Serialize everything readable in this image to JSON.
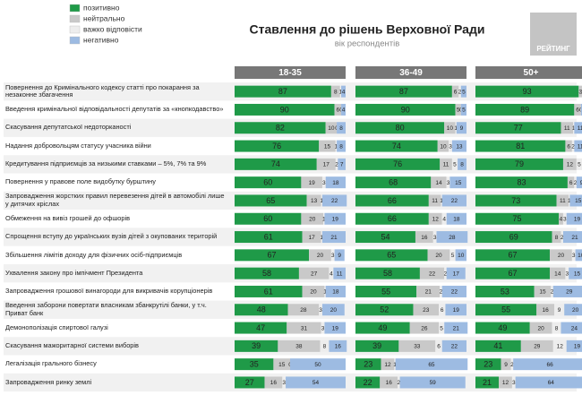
{
  "chart_data": {
    "type": "bar",
    "stacked": true,
    "horizontal": true,
    "title": "Ставлення до рішень Верховної Ради",
    "subtitle": "вік респондентів",
    "logo": "РЕЙТИНГ",
    "xlim": [
      0,
      100
    ],
    "series": [
      {
        "name": "позитивно",
        "color": "#1f9a48"
      },
      {
        "name": "нейтрально",
        "color": "#c9c9c9"
      },
      {
        "name": "важко відповісти",
        "color": "#ededed"
      },
      {
        "name": "негативно",
        "color": "#9dbbe2"
      }
    ],
    "categories": [
      "Повернення до Кримінального кодексу статті про покарання за незаконне збагачення",
      "Введення кримінальної відповідальності депутатів за «кнопкодавство»",
      "Скасування депутатської недоторканості",
      "Надання добровольцям статусу учасника війни",
      "Кредитування підприємців за низькими ставками – 5%, 7% та 9%",
      "Повернення у правове поле видобутку бурштину",
      "Запровадження жорстких правил перевезення дітей в автомобілі лише у дитячих кріслах",
      "Обмеження на вивіз грошей до офшорів",
      "Спрощення вступу до українських вузів дітей з окупованих територій",
      "Збільшення лімітів доходу для фізичних осіб-підприємців",
      "Ухвалення закону про імпічмент Президента",
      "Запровадження грошової винагороди для викривачів корупціонерів",
      "Введення заборони повертати власникам збанкрутілі банки, у т.ч. Приват банк",
      "Демонополізація спиртової галузі",
      "Скасування мажоритарної системи виборів",
      "Легалізація грального бізнесу",
      "Запровадження ринку землі"
    ],
    "panels": [
      {
        "title": "18-35",
        "values": [
          [
            87,
            90,
            82,
            76,
            74,
            60,
            65,
            60,
            61,
            67,
            58,
            61,
            48,
            47,
            39,
            35,
            27
          ],
          [
            8,
            6,
            10,
            15,
            17,
            19,
            13,
            20,
            17,
            20,
            27,
            20,
            28,
            31,
            38,
            15,
            16
          ],
          [
            1,
            0,
            0,
            1,
            2,
            3,
            1,
            1,
            1,
            3,
            4,
            1,
            3,
            3,
            8,
            0,
            3
          ],
          [
            4,
            4,
            8,
            8,
            7,
            18,
            22,
            19,
            21,
            9,
            11,
            18,
            20,
            19,
            16,
            50,
            54
          ]
        ]
      },
      {
        "title": "36-49",
        "values": [
          [
            87,
            90,
            80,
            74,
            76,
            68,
            66,
            66,
            54,
            65,
            58,
            55,
            52,
            49,
            39,
            23,
            22
          ],
          [
            6,
            5,
            10,
            10,
            11,
            14,
            11,
            12,
            16,
            20,
            22,
            21,
            23,
            26,
            33,
            12,
            16
          ],
          [
            2,
            0,
            1,
            3,
            5,
            3,
            1,
            4,
            3,
            5,
            2,
            2,
            6,
            5,
            6,
            1,
            2
          ],
          [
            5,
            5,
            9,
            13,
            8,
            15,
            22,
            18,
            28,
            10,
            17,
            22,
            19,
            21,
            22,
            65,
            59
          ]
        ]
      },
      {
        "title": "50+",
        "values": [
          [
            93,
            89,
            77,
            81,
            79,
            83,
            73,
            75,
            69,
            67,
            67,
            53,
            55,
            49,
            41,
            23,
            21
          ],
          [
            3,
            6,
            11,
            6,
            12,
            6,
            11,
            4,
            8,
            20,
            14,
            15,
            16,
            20,
            29,
            9,
            12
          ],
          [
            1,
            0,
            1,
            2,
            5,
            2,
            1,
            3,
            2,
            3,
            3,
            2,
            9,
            8,
            12,
            2,
            3
          ],
          [
            3,
            5,
            11,
            11,
            4,
            9,
            15,
            19,
            21,
            10,
            15,
            29,
            20,
            24,
            19,
            66,
            64
          ]
        ]
      }
    ]
  }
}
